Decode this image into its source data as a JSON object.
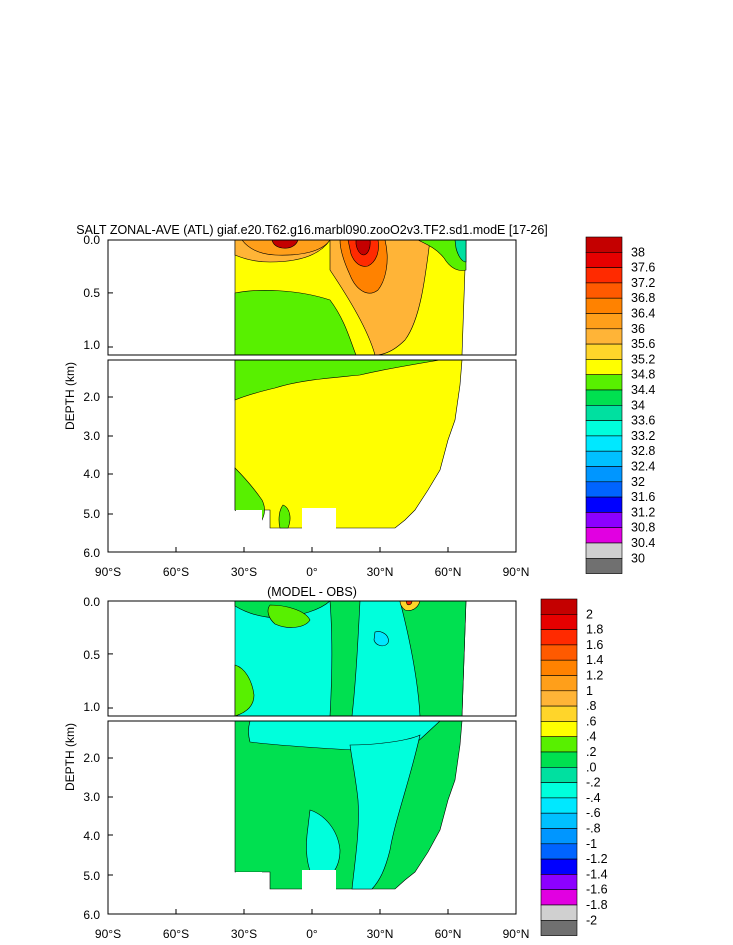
{
  "chart_data": [
    {
      "type": "heatmap",
      "title": "SALT ZONAL-AVE (ATL) giaf.e20.T62.g16.marbl090.zooO2v3.TF2.sd1.modE [17-26]",
      "ylabel": "DEPTH (km)",
      "xlabel": "",
      "x_ticks": [
        "90°S",
        "60°S",
        "30°S",
        "0°",
        "30°N",
        "60°N",
        "90°N"
      ],
      "y_ticks_upper": [
        "0.0",
        "0.5",
        "1.0"
      ],
      "y_ticks_lower": [
        "2.0",
        "3.0",
        "4.0",
        "5.0",
        "6.0"
      ],
      "xlim": [
        -90,
        90
      ],
      "ylim": [
        6.0,
        0.0
      ],
      "colorbar_levels": [
        "38",
        "37.6",
        "37.2",
        "36.8",
        "36.4",
        "36",
        "35.6",
        "35.2",
        "34.8",
        "34.4",
        "34",
        "33.6",
        "33.2",
        "32.8",
        "32.4",
        "32",
        "31.6",
        "31.2",
        "30.8",
        "30.4",
        "30"
      ],
      "colorbar_colors": [
        "#c40000",
        "#e60000",
        "#ff2a00",
        "#ff5a00",
        "#ff8200",
        "#ff9f1a",
        "#ffb437",
        "#ffd52a",
        "#ffff00",
        "#58f000",
        "#00e050",
        "#00e0a0",
        "#00ffdc",
        "#00e8ff",
        "#00c0ff",
        "#0096ff",
        "#0064ff",
        "#0000ff",
        "#8c00ff",
        "#e100e1",
        "#d0d0d0",
        "#707070"
      ]
    },
    {
      "type": "heatmap",
      "title": "(MODEL - OBS)",
      "ylabel": "DEPTH (km)",
      "xlabel": "",
      "x_ticks": [
        "90°S",
        "60°S",
        "30°S",
        "0°",
        "30°N",
        "60°N",
        "90°N"
      ],
      "y_ticks_upper": [
        "0.0",
        "0.5",
        "1.0"
      ],
      "y_ticks_lower": [
        "2.0",
        "3.0",
        "4.0",
        "5.0",
        "6.0"
      ],
      "xlim": [
        -90,
        90
      ],
      "ylim": [
        6.0,
        0.0
      ],
      "colorbar_levels": [
        "2",
        "1.8",
        "1.6",
        "1.4",
        "1.2",
        "1",
        ".8",
        ".6",
        ".4",
        ".2",
        ".0",
        "-.2",
        "-.4",
        "-.6",
        "-.8",
        "-1",
        "-1.2",
        "-1.4",
        "-1.6",
        "-1.8",
        "-2"
      ],
      "colorbar_colors": [
        "#c40000",
        "#e60000",
        "#ff2a00",
        "#ff5a00",
        "#ff8200",
        "#ff9f1a",
        "#ffb437",
        "#ffd52a",
        "#ffff00",
        "#58f000",
        "#00e050",
        "#00e0a0",
        "#00ffdc",
        "#00e8ff",
        "#00c0ff",
        "#0096ff",
        "#0064ff",
        "#0000ff",
        "#8c00ff",
        "#e100e1",
        "#d0d0d0",
        "#707070"
      ]
    }
  ]
}
